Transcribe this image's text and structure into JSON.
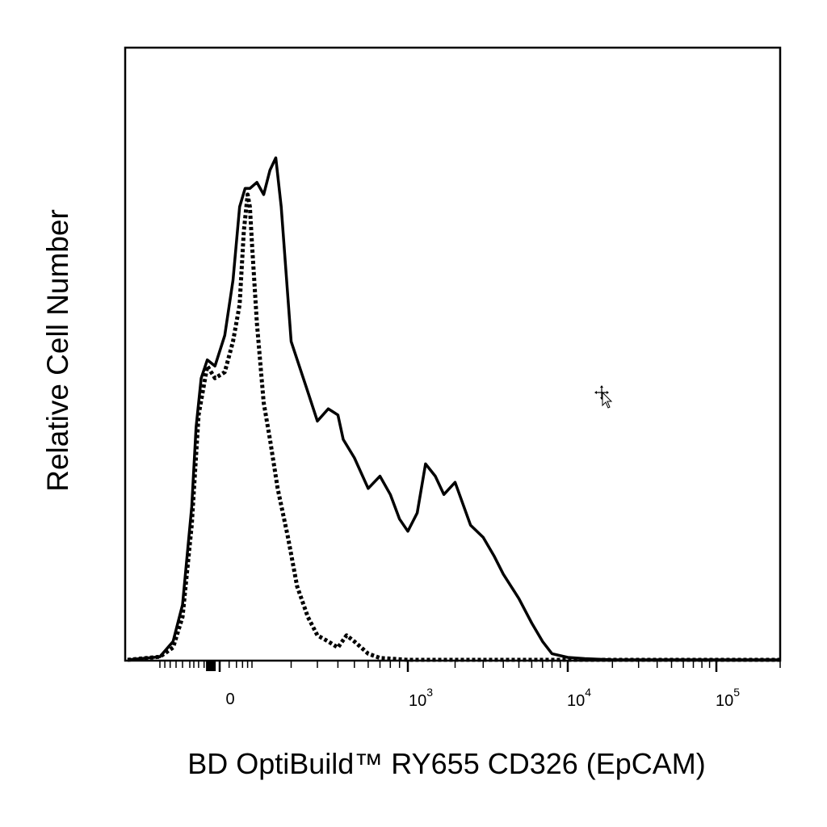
{
  "chart_data": {
    "type": "area",
    "title": "",
    "xlabel": "BD OptiBuild™ RY655 CD326 (EpCAM)",
    "ylabel": "Relative Cell Number",
    "x_scale": "biexponential",
    "xlim": [
      -300,
      200000
    ],
    "ylim": [
      0,
      100
    ],
    "grid": false,
    "legend": "none",
    "x_tick_labels": [
      {
        "value": 0,
        "base": "0",
        "exp": ""
      },
      {
        "value": 1000,
        "base": "10",
        "exp": "3"
      },
      {
        "value": 10000,
        "base": "10",
        "exp": "4"
      },
      {
        "value": 100000,
        "base": "10",
        "exp": "5"
      }
    ],
    "series": [
      {
        "style": "solid",
        "x": [
          -300,
          -200,
          -150,
          -120,
          -90,
          -70,
          -50,
          -30,
          -10,
          10,
          30,
          50,
          70,
          90,
          110,
          125,
          140,
          155,
          170,
          200,
          250,
          300,
          350,
          400,
          430,
          500,
          600,
          700,
          800,
          900,
          1000,
          1150,
          1300,
          1500,
          1700,
          2000,
          2500,
          3000,
          3500,
          4000,
          5000,
          6000,
          7000,
          8000,
          10000,
          13000,
          20000,
          50000,
          200000
        ],
        "y": [
          0,
          0.5,
          3,
          9,
          25,
          38,
          46,
          49,
          48,
          53,
          62,
          74,
          77,
          77,
          78,
          76,
          80,
          82,
          74,
          52,
          45,
          39,
          41,
          40,
          36,
          33,
          28,
          30,
          27,
          23,
          21,
          24,
          32,
          30,
          27,
          29,
          22,
          20,
          17,
          14,
          10,
          6,
          3,
          1,
          0.4,
          0.2,
          0,
          0,
          0
        ]
      },
      {
        "style": "dotted",
        "x": [
          -300,
          -200,
          -150,
          -120,
          -90,
          -60,
          -30,
          -10,
          10,
          30,
          50,
          65,
          80,
          90,
          100,
          110,
          125,
          140,
          160,
          190,
          220,
          260,
          300,
          350,
          400,
          450,
          500,
          600,
          700,
          800,
          1000,
          2000,
          10000,
          200000
        ],
        "y": [
          0,
          0.5,
          2,
          7,
          22,
          40,
          48,
          46,
          47,
          52,
          58,
          70,
          76,
          74,
          68,
          55,
          42,
          36,
          28,
          20,
          12,
          7,
          4,
          3,
          2,
          4,
          3,
          1,
          0.3,
          0.2,
          0,
          0,
          0,
          0
        ]
      }
    ]
  }
}
